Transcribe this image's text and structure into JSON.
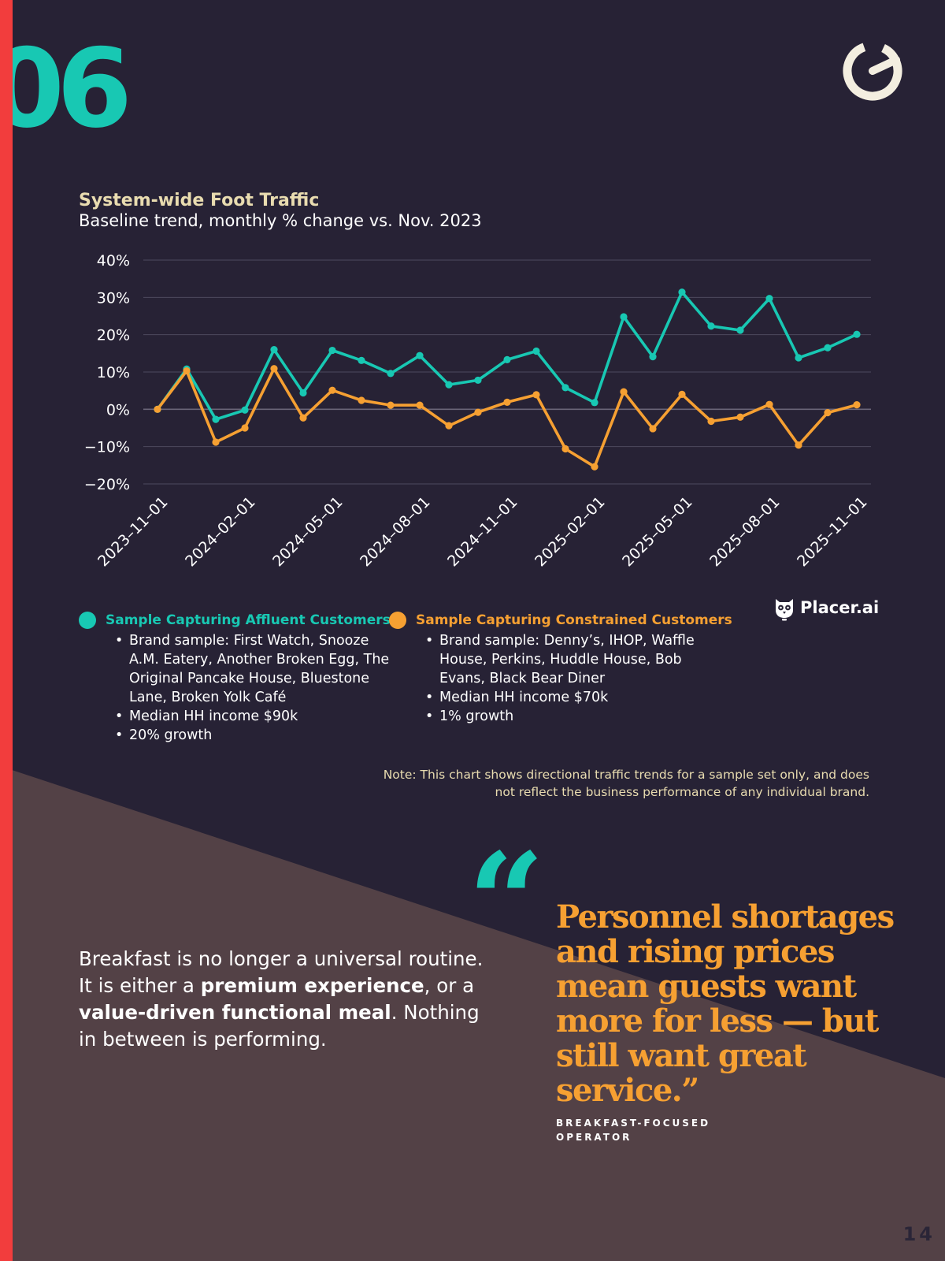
{
  "section": {
    "number": "06"
  },
  "colors": {
    "background": "#272235",
    "lower_band": "#534146",
    "accent_red": "#f23d3d",
    "teal": "#18c8b3",
    "orange": "#f6a032",
    "cream": "#e9dcb0",
    "grid": "#4e4a5e"
  },
  "chart_data": {
    "type": "line",
    "title": "System-wide Foot Traffic",
    "subtitle": "Baseline trend, monthly % change vs. Nov. 2023",
    "xlabel": "",
    "ylabel": "",
    "ylim": [
      -20,
      40
    ],
    "y_ticks": [
      40,
      30,
      20,
      10,
      0,
      -10,
      -20
    ],
    "y_tick_labels": [
      "40%",
      "30%",
      "20%",
      "10%",
      "0%",
      "−10%",
      "−20%"
    ],
    "grid": true,
    "x": [
      "2023-11-01",
      "2023-12-01",
      "2024-01-01",
      "2024-02-01",
      "2024-03-01",
      "2024-04-01",
      "2024-05-01",
      "2024-06-01",
      "2024-07-01",
      "2024-08-01",
      "2024-09-01",
      "2024-10-01",
      "2024-11-01",
      "2024-12-01",
      "2025-01-01",
      "2025-02-01",
      "2025-03-01",
      "2025-04-01",
      "2025-05-01",
      "2025-06-01",
      "2025-07-01",
      "2025-08-01",
      "2025-09-01",
      "2025-10-01",
      "2025-11-01"
    ],
    "x_tick_labels": [
      "2023–11–01",
      "2024–02–01",
      "2024–05–01",
      "2024–08–01",
      "2024–11–01",
      "2025–02–01",
      "2025–05–01",
      "2025–08–01",
      "2025–11–01"
    ],
    "x_tick_positions": [
      0,
      3,
      6,
      9,
      12,
      15,
      18,
      21,
      24
    ],
    "series": [
      {
        "name": "Sample Capturing Affluent Customers",
        "color": "#18c8b3",
        "values": [
          0,
          10.8,
          -2.7,
          -0.2,
          16.0,
          4.4,
          15.8,
          13.1,
          9.6,
          14.4,
          6.6,
          7.8,
          13.3,
          15.6,
          5.8,
          1.8,
          24.8,
          14.1,
          31.4,
          22.3,
          21.2,
          29.7,
          13.8,
          16.5,
          20.1
        ]
      },
      {
        "name": "Sample Capturing Constrained Customers",
        "color": "#f6a032",
        "values": [
          0,
          10.3,
          -8.8,
          -5.0,
          10.9,
          -2.3,
          5.1,
          2.4,
          1.1,
          1.1,
          -4.4,
          -0.8,
          1.9,
          3.9,
          -10.6,
          -15.4,
          4.7,
          -5.2,
          4.0,
          -3.2,
          -2.1,
          1.3,
          -9.6,
          -0.9,
          1.2
        ]
      }
    ]
  },
  "legend": {
    "affluent": {
      "title": "Sample Capturing Affluent Customers",
      "bullets": [
        "Brand sample: First Watch, Snooze A.M. Eatery, Another Broken Egg, The Original Pancake House, Bluestone Lane, Broken Yolk Café",
        "Median HH income $90k",
        "20% growth"
      ]
    },
    "constrained": {
      "title": "Sample Capturing Constrained Customers",
      "bullets": [
        "Brand sample: Denny’s, IHOP, Waffle House, Perkins, Huddle House, Bob Evans, Black Bear Diner",
        "Median HH income $70k",
        "1% growth"
      ]
    }
  },
  "source": {
    "logo_text": "Placer.ai"
  },
  "note": "Note: This chart shows directional traffic trends for a sample set only, and does not reflect the business performance of any individual brand.",
  "body": {
    "t1": "Breakfast is no longer a universal routine. It is either a ",
    "b1": "premium experience",
    "t2": ", or a ",
    "b2": "value-driven functional meal",
    "t3": ". Nothing in between is performing."
  },
  "quote": {
    "mark": "“",
    "text": "Personnel shortages and rising prices mean guests want more for less — but still want great service.”",
    "attribution": "Breakfast-Focused Operator"
  },
  "page_number": "14"
}
